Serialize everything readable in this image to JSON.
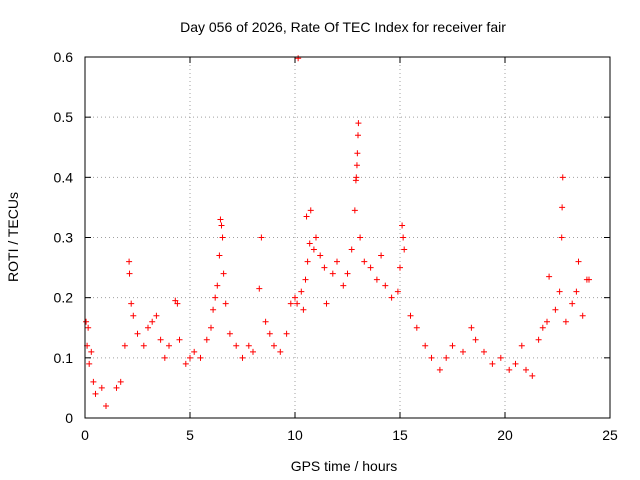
{
  "chart_data": {
    "type": "scatter",
    "title": "Day 056 of 2026, Rate Of TEC Index for receiver fair",
    "xlabel": "GPS time / hours",
    "ylabel": "ROTI / TECUs",
    "xlim": [
      0,
      25
    ],
    "ylim": [
      0,
      0.6
    ],
    "x_ticks": [
      0,
      5,
      10,
      15,
      20,
      25
    ],
    "y_ticks": [
      0,
      0.1,
      0.2,
      0.3,
      0.4,
      0.5,
      0.6
    ],
    "x_tick_labels": [
      "0",
      "5",
      "10",
      "15",
      "20",
      "25"
    ],
    "y_tick_labels": [
      "0",
      "0.1",
      "0.2",
      "0.3",
      "0.4",
      "0.5",
      "0.6"
    ],
    "grid": true,
    "marker": "plus",
    "series": [
      {
        "name": "ROTI",
        "color": "#ff0000",
        "points": [
          [
            0.05,
            0.16
          ],
          [
            0.1,
            0.12
          ],
          [
            0.15,
            0.15
          ],
          [
            0.2,
            0.09
          ],
          [
            0.3,
            0.11
          ],
          [
            0.4,
            0.06
          ],
          [
            0.5,
            0.04
          ],
          [
            0.8,
            0.05
          ],
          [
            1.0,
            0.02
          ],
          [
            1.5,
            0.05
          ],
          [
            1.7,
            0.06
          ],
          [
            1.9,
            0.12
          ],
          [
            2.1,
            0.26
          ],
          [
            2.12,
            0.24
          ],
          [
            2.2,
            0.19
          ],
          [
            2.3,
            0.17
          ],
          [
            2.5,
            0.14
          ],
          [
            2.8,
            0.12
          ],
          [
            3.0,
            0.15
          ],
          [
            3.2,
            0.16
          ],
          [
            3.4,
            0.17
          ],
          [
            3.6,
            0.13
          ],
          [
            3.8,
            0.1
          ],
          [
            4.0,
            0.12
          ],
          [
            4.3,
            0.195
          ],
          [
            4.4,
            0.19
          ],
          [
            4.5,
            0.13
          ],
          [
            4.8,
            0.09
          ],
          [
            5.0,
            0.1
          ],
          [
            5.2,
            0.11
          ],
          [
            5.5,
            0.1
          ],
          [
            5.8,
            0.13
          ],
          [
            6.0,
            0.15
          ],
          [
            6.1,
            0.18
          ],
          [
            6.2,
            0.2
          ],
          [
            6.3,
            0.22
          ],
          [
            6.4,
            0.27
          ],
          [
            6.45,
            0.33
          ],
          [
            6.5,
            0.32
          ],
          [
            6.55,
            0.3
          ],
          [
            6.6,
            0.24
          ],
          [
            6.7,
            0.19
          ],
          [
            6.9,
            0.14
          ],
          [
            7.2,
            0.12
          ],
          [
            7.5,
            0.1
          ],
          [
            7.8,
            0.12
          ],
          [
            8.0,
            0.11
          ],
          [
            8.3,
            0.215
          ],
          [
            8.4,
            0.3
          ],
          [
            8.6,
            0.16
          ],
          [
            8.8,
            0.14
          ],
          [
            9.0,
            0.12
          ],
          [
            9.3,
            0.11
          ],
          [
            9.6,
            0.14
          ],
          [
            9.8,
            0.19
          ],
          [
            10.0,
            0.2
          ],
          [
            10.1,
            0.19
          ],
          [
            10.15,
            0.598
          ],
          [
            10.3,
            0.21
          ],
          [
            10.4,
            0.18
          ],
          [
            10.5,
            0.23
          ],
          [
            10.55,
            0.335
          ],
          [
            10.6,
            0.26
          ],
          [
            10.7,
            0.29
          ],
          [
            10.75,
            0.345
          ],
          [
            10.9,
            0.28
          ],
          [
            11.0,
            0.3
          ],
          [
            11.2,
            0.27
          ],
          [
            11.4,
            0.25
          ],
          [
            11.5,
            0.19
          ],
          [
            11.8,
            0.24
          ],
          [
            12.0,
            0.26
          ],
          [
            12.3,
            0.22
          ],
          [
            12.5,
            0.24
          ],
          [
            12.7,
            0.28
          ],
          [
            12.85,
            0.345
          ],
          [
            12.9,
            0.395
          ],
          [
            12.92,
            0.4
          ],
          [
            12.95,
            0.42
          ],
          [
            12.97,
            0.44
          ],
          [
            13.0,
            0.47
          ],
          [
            13.02,
            0.49
          ],
          [
            13.1,
            0.3
          ],
          [
            13.3,
            0.26
          ],
          [
            13.6,
            0.25
          ],
          [
            13.9,
            0.23
          ],
          [
            14.1,
            0.27
          ],
          [
            14.3,
            0.22
          ],
          [
            14.6,
            0.2
          ],
          [
            14.9,
            0.21
          ],
          [
            15.0,
            0.25
          ],
          [
            15.1,
            0.32
          ],
          [
            15.15,
            0.3
          ],
          [
            15.2,
            0.28
          ],
          [
            15.5,
            0.17
          ],
          [
            15.8,
            0.15
          ],
          [
            16.2,
            0.12
          ],
          [
            16.5,
            0.1
          ],
          [
            16.9,
            0.08
          ],
          [
            17.2,
            0.1
          ],
          [
            17.5,
            0.12
          ],
          [
            18.0,
            0.11
          ],
          [
            18.4,
            0.15
          ],
          [
            18.6,
            0.13
          ],
          [
            19.0,
            0.11
          ],
          [
            19.4,
            0.09
          ],
          [
            19.8,
            0.1
          ],
          [
            20.2,
            0.08
          ],
          [
            20.5,
            0.09
          ],
          [
            20.8,
            0.12
          ],
          [
            21.0,
            0.08
          ],
          [
            21.3,
            0.07
          ],
          [
            21.6,
            0.13
          ],
          [
            21.8,
            0.15
          ],
          [
            22.0,
            0.16
          ],
          [
            22.1,
            0.235
          ],
          [
            22.4,
            0.18
          ],
          [
            22.6,
            0.21
          ],
          [
            22.7,
            0.3
          ],
          [
            22.72,
            0.35
          ],
          [
            22.75,
            0.4
          ],
          [
            22.9,
            0.16
          ],
          [
            23.2,
            0.19
          ],
          [
            23.4,
            0.21
          ],
          [
            23.5,
            0.26
          ],
          [
            23.7,
            0.17
          ],
          [
            23.9,
            0.23
          ],
          [
            24.0,
            0.23
          ]
        ]
      }
    ]
  }
}
